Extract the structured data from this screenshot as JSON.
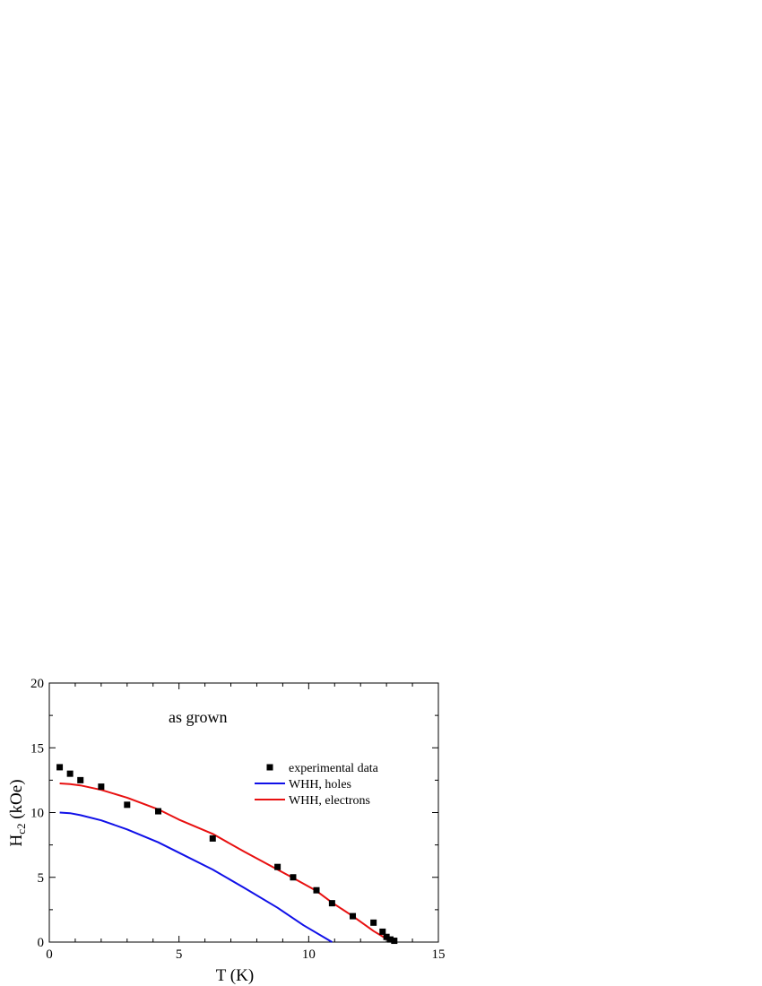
{
  "chart_data": {
    "type": "scatter",
    "annotation": "as grown",
    "xlabel": "T (K)",
    "ylabel": {
      "main": "H",
      "sub": "c2",
      "unit": " (kOe)"
    },
    "xlim": [
      0,
      15
    ],
    "ylim": [
      0,
      20
    ],
    "xticks": [
      0,
      5,
      10,
      15
    ],
    "yticks": [
      0,
      5,
      10,
      15,
      20
    ],
    "x_minor_step": 1,
    "y_minor_step": 2.5,
    "grid": false,
    "legend_position": "upper-right",
    "series": [
      {
        "name": "experimental data",
        "kind": "scatter",
        "marker": "square",
        "color": "#000000",
        "points": [
          [
            0.4,
            13.5
          ],
          [
            0.8,
            13.0
          ],
          [
            1.2,
            12.5
          ],
          [
            2.0,
            12.0
          ],
          [
            3.0,
            10.6
          ],
          [
            4.2,
            10.1
          ],
          [
            6.3,
            8.0
          ],
          [
            8.8,
            5.8
          ],
          [
            9.4,
            5.0
          ],
          [
            10.3,
            4.0
          ],
          [
            10.9,
            3.0
          ],
          [
            11.7,
            2.0
          ],
          [
            12.5,
            1.5
          ],
          [
            12.85,
            0.8
          ],
          [
            13.0,
            0.4
          ],
          [
            13.15,
            0.2
          ],
          [
            13.3,
            0.1
          ]
        ]
      },
      {
        "name": "WHH, holes",
        "kind": "line",
        "color": "#1010e8",
        "points": [
          [
            0.4,
            10.0
          ],
          [
            0.8,
            9.95
          ],
          [
            1.2,
            9.8
          ],
          [
            2.0,
            9.4
          ],
          [
            3.0,
            8.7
          ],
          [
            4.2,
            7.7
          ],
          [
            5.0,
            6.9
          ],
          [
            6.3,
            5.6
          ],
          [
            7.5,
            4.2
          ],
          [
            8.8,
            2.65
          ],
          [
            9.8,
            1.3
          ],
          [
            10.9,
            0.0
          ]
        ]
      },
      {
        "name": "WHH, electrons",
        "kind": "line",
        "color": "#e81010",
        "points": [
          [
            0.4,
            12.25
          ],
          [
            0.8,
            12.2
          ],
          [
            1.2,
            12.1
          ],
          [
            2.0,
            11.75
          ],
          [
            3.0,
            11.15
          ],
          [
            4.2,
            10.25
          ],
          [
            5.0,
            9.45
          ],
          [
            6.3,
            8.35
          ],
          [
            7.5,
            7.0
          ],
          [
            8.8,
            5.6
          ],
          [
            9.4,
            4.95
          ],
          [
            10.3,
            3.95
          ],
          [
            10.9,
            3.05
          ],
          [
            11.7,
            2.0
          ],
          [
            12.5,
            0.85
          ],
          [
            13.0,
            0.25
          ],
          [
            13.3,
            0.0
          ]
        ]
      }
    ]
  }
}
